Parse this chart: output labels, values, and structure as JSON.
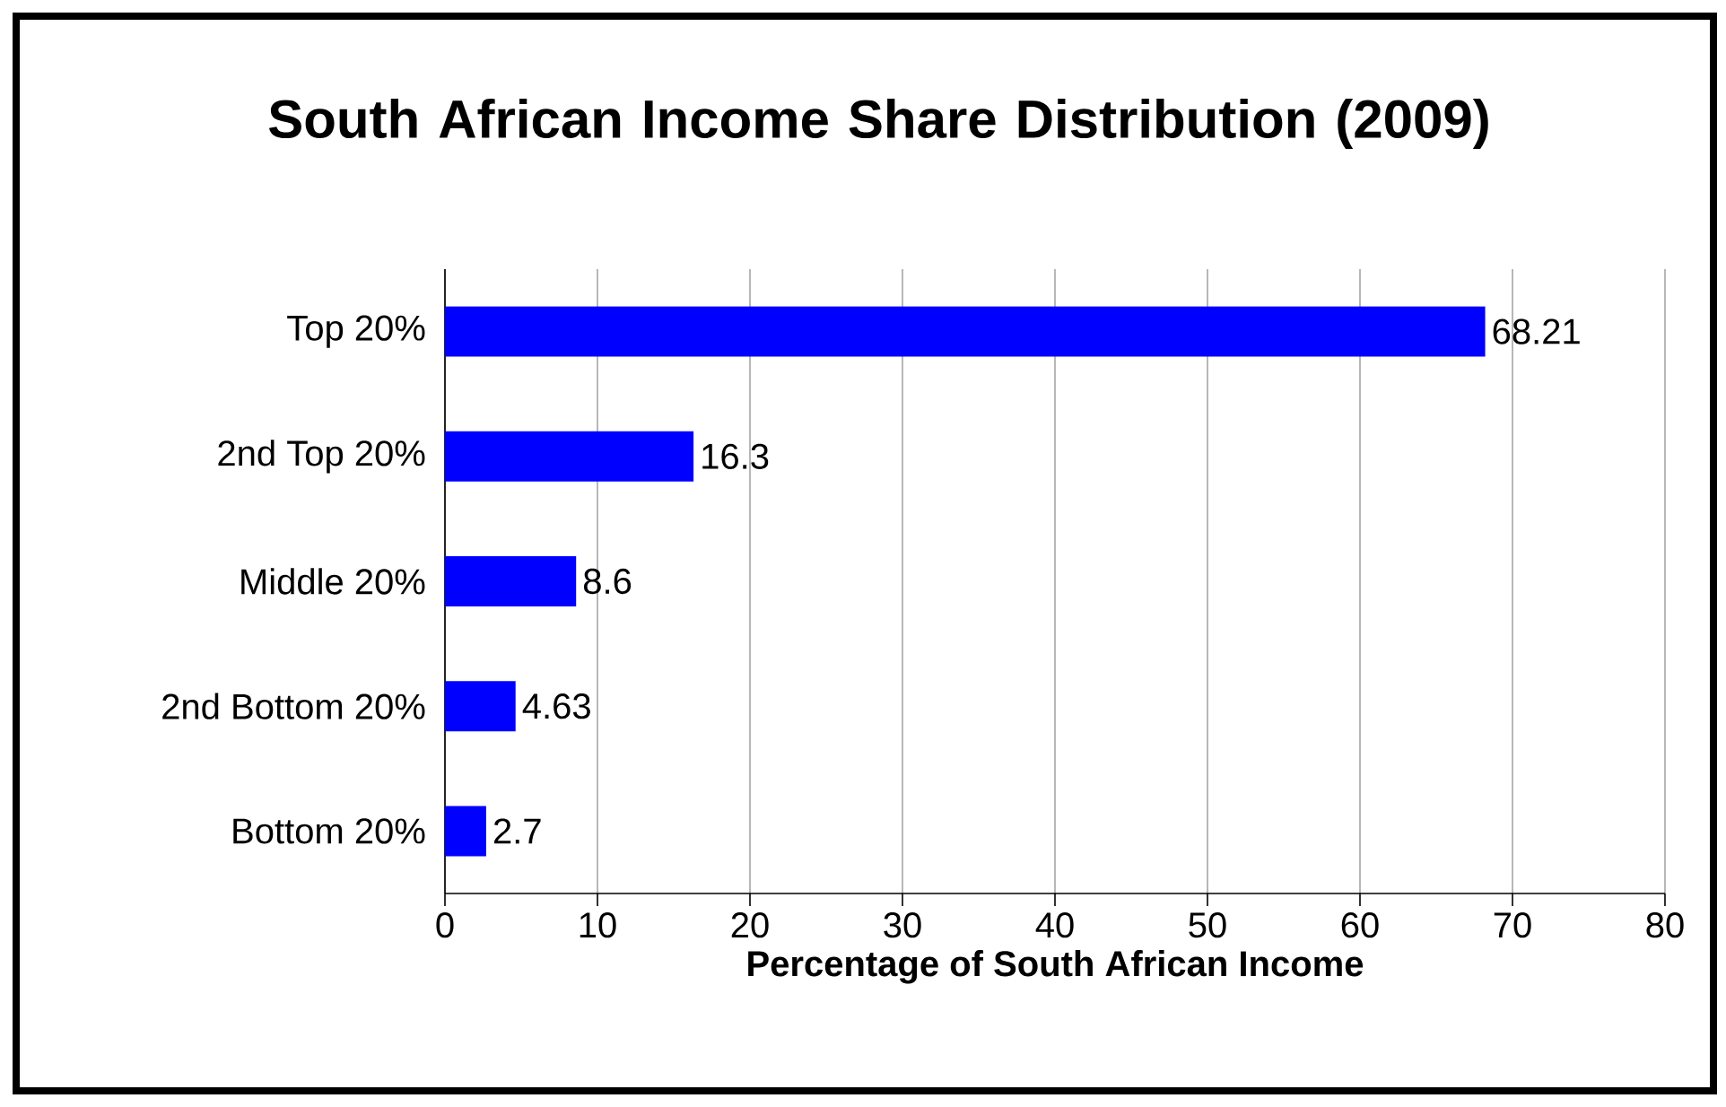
{
  "chart_data": {
    "type": "bar",
    "orientation": "horizontal",
    "title": "South African Income Share Distribution (2009)",
    "xlabel": "Percentage of South African Income",
    "categories": [
      "Top 20%",
      "2nd Top 20%",
      "Middle 20%",
      "2nd Bottom 20%",
      "Bottom 20%"
    ],
    "values": [
      68.21,
      16.3,
      8.6,
      4.63,
      2.7
    ],
    "color": "#0000ff",
    "xlim": [
      0,
      80
    ],
    "xticks": [
      0,
      10,
      20,
      30,
      40,
      50,
      60,
      70,
      80
    ],
    "grid": "x",
    "data_labels": true
  }
}
